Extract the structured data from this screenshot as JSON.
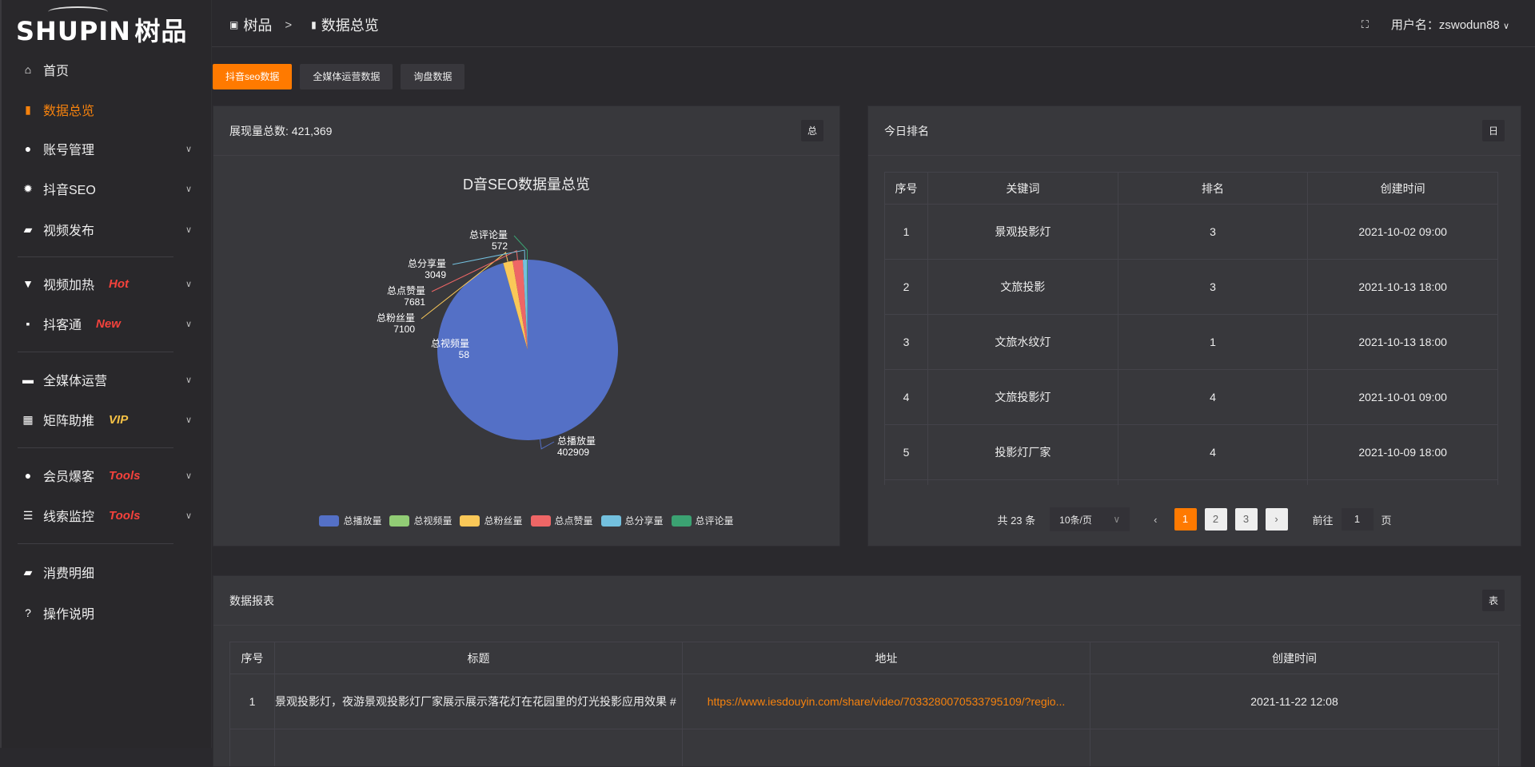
{
  "brand": {
    "logo_text": "SHUPIN",
    "logo_cn": "树品"
  },
  "sidebar": {
    "items": [
      {
        "label": "首页",
        "icon": "home-icon",
        "glyph": "⌂"
      },
      {
        "label": "数据总览",
        "icon": "bar-chart-icon",
        "glyph": "▮",
        "active": true
      },
      {
        "label": "账号管理",
        "icon": "user-icon",
        "glyph": "●",
        "chevron": true
      },
      {
        "label": "抖音SEO",
        "icon": "gear-icon",
        "glyph": "✹",
        "chevron": true
      },
      {
        "label": "视频发布",
        "icon": "camera-icon",
        "glyph": "▰",
        "chevron": true
      },
      {
        "label": "视频加热",
        "icon": "brush-icon",
        "glyph": "▼",
        "chevron": true,
        "badge": "Hot",
        "badge_color": "#f5423c"
      },
      {
        "label": "抖客通",
        "icon": "chat-icon",
        "glyph": "▪",
        "chevron": true,
        "badge": "New",
        "badge_color": "#f5423c"
      },
      {
        "label": "全媒体运营",
        "icon": "monitor-icon",
        "glyph": "▬",
        "chevron": true
      },
      {
        "label": "矩阵助推",
        "icon": "grid-icon",
        "glyph": "▦",
        "chevron": true,
        "badge": "VIP",
        "badge_color": "#f6c245"
      },
      {
        "label": "会员爆客",
        "icon": "member-icon",
        "glyph": "●",
        "chevron": true,
        "badge": "Tools",
        "badge_color": "#f5423c"
      },
      {
        "label": "线索监控",
        "icon": "sliders-icon",
        "glyph": "☰",
        "chevron": true,
        "badge": "Tools",
        "badge_color": "#f5423c"
      },
      {
        "label": "消费明细",
        "icon": "wallet-icon",
        "glyph": "▰"
      },
      {
        "label": "操作说明",
        "icon": "help-icon",
        "glyph": "?"
      }
    ]
  },
  "header": {
    "breadcrumb": [
      "树品",
      "数据总览"
    ],
    "user_label": "用户名：zswodun88"
  },
  "tabs": [
    "抖音seo数据",
    "全媒体运营数据",
    "询盘数据"
  ],
  "overview": {
    "title": "展现量总数: 421,369",
    "tag": "总"
  },
  "chart_data": {
    "type": "pie",
    "title": "D音SEO数据量总览",
    "legend_position": "bottom",
    "slices": [
      {
        "name": "总播放量",
        "value": 402909,
        "color": "#5470c6"
      },
      {
        "name": "总视频量",
        "value": 58,
        "color": "#91cc75"
      },
      {
        "name": "总粉丝量",
        "value": 7100,
        "color": "#fac858"
      },
      {
        "name": "总点赞量",
        "value": 7681,
        "color": "#ee6666"
      },
      {
        "name": "总分享量",
        "value": 3049,
        "color": "#73c0de"
      },
      {
        "name": "总评论量",
        "value": 572,
        "color": "#3ba272"
      }
    ]
  },
  "ranking": {
    "title": "今日排名",
    "tag": "日",
    "columns": [
      "序号",
      "关键词",
      "排名",
      "创建时间"
    ],
    "rows": [
      [
        "1",
        "景观投影灯",
        "3",
        "2021-10-02 09:00"
      ],
      [
        "2",
        "文旅投影",
        "3",
        "2021-10-13 18:00"
      ],
      [
        "3",
        "文旅水纹灯",
        "1",
        "2021-10-13 18:00"
      ],
      [
        "4",
        "文旅投影灯",
        "4",
        "2021-10-01 09:00"
      ],
      [
        "5",
        "投影灯厂家",
        "4",
        "2021-10-09 18:00"
      ]
    ],
    "pagination": {
      "total": "共 23 条",
      "page_size": "10条/页",
      "pages": [
        "1",
        "2",
        "3"
      ],
      "current": "1",
      "goto_label": "前往",
      "goto_value": "1",
      "page_suffix": "页"
    }
  },
  "report": {
    "title": "数据报表",
    "tag": "表",
    "columns": [
      "序号",
      "标题",
      "地址",
      "创建时间"
    ],
    "rows": [
      [
        "1",
        "景观投影灯，夜游景观投影灯厂家展示展示落花灯在花园里的灯光投影应用效果 #",
        "https://www.iesdouyin.com/share/video/7033280070533795109/?regio...",
        "2021-11-22 12:08"
      ]
    ]
  },
  "colors": {
    "accent": "#ff7a00"
  }
}
